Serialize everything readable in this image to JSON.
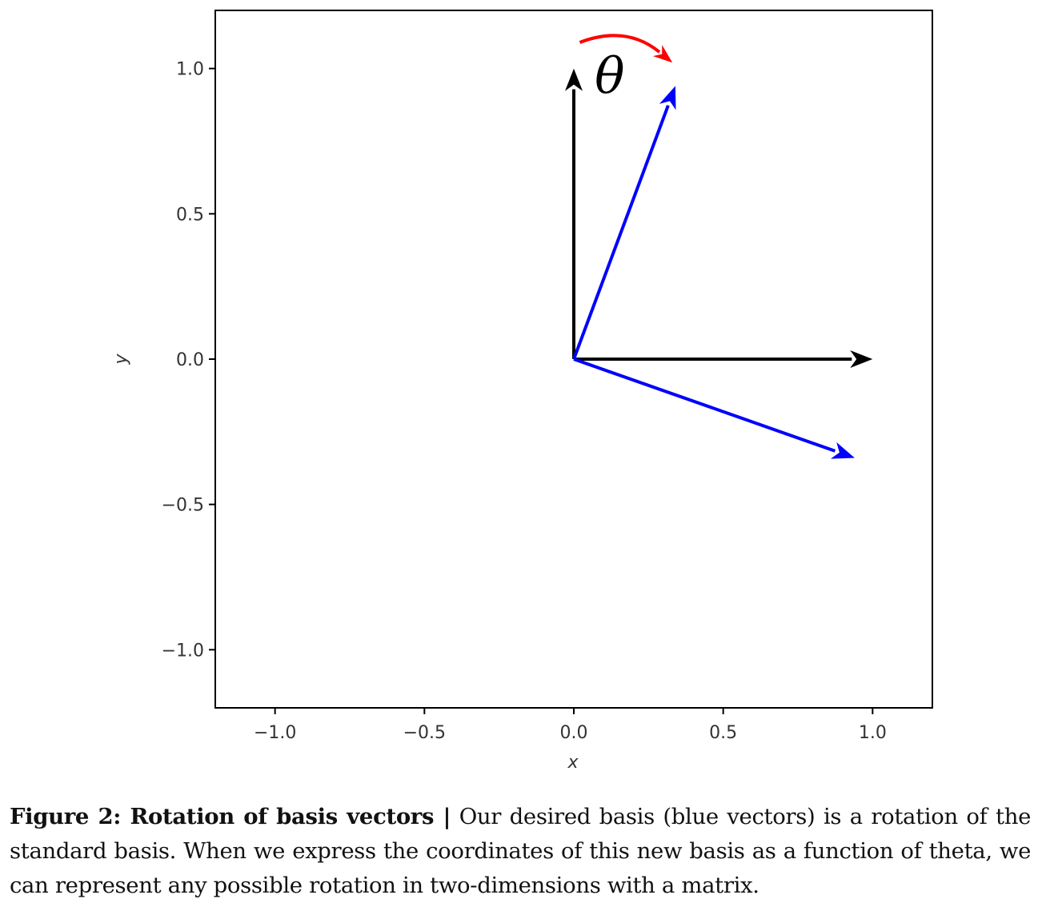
{
  "chart_data": {
    "type": "vector",
    "title": "",
    "xlabel": "x",
    "ylabel": "y",
    "xlim": [
      -1.2,
      1.2
    ],
    "ylim": [
      -1.2,
      1.2
    ],
    "xticks": [
      -1.0,
      -0.5,
      0.0,
      0.5,
      1.0
    ],
    "yticks": [
      -1.0,
      -0.5,
      0.0,
      0.5,
      1.0
    ],
    "grid": false,
    "vectors": [
      {
        "id": "standard-basis-y",
        "origin": [
          0,
          0
        ],
        "end": [
          0,
          1.0
        ],
        "color": "#000000"
      },
      {
        "id": "standard-basis-x",
        "origin": [
          0,
          0
        ],
        "end": [
          1.0,
          0
        ],
        "color": "#000000"
      },
      {
        "id": "rotated-basis-1",
        "origin": [
          0,
          0
        ],
        "end": [
          0.34,
          0.94
        ],
        "color": "#0000ff"
      },
      {
        "id": "rotated-basis-2",
        "origin": [
          0,
          0
        ],
        "end": [
          0.94,
          -0.34
        ],
        "color": "#0000ff"
      }
    ],
    "annotation": {
      "text": "θ",
      "arc_color": "#ff0000",
      "arc_from": [
        0.02,
        1.09
      ],
      "arc_to": [
        0.33,
        1.02
      ],
      "label_at": [
        0.12,
        0.96
      ]
    }
  },
  "caption": {
    "lead": "Figure 2: Rotation of basis vectors |",
    "body": " Our desired basis (blue vectors) is a rotation of the standard basis. When we express the coordinates of this new basis as a function of theta, we can represent any possible rotation in two-dimensions with a matrix."
  }
}
